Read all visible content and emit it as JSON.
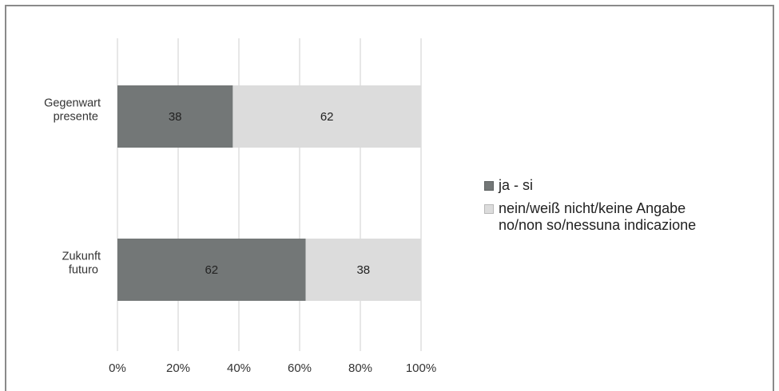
{
  "chart_data": {
    "type": "bar",
    "orientation": "horizontal",
    "stacked": true,
    "percent_stacked": true,
    "categories": [
      "Gegenwart\npresente",
      "Zukunft\nfuturo"
    ],
    "series": [
      {
        "name": "ja - si",
        "values": [
          38,
          62
        ],
        "color": "#737777"
      },
      {
        "name": "nein/weiß nicht/keine Angabe\nno/non so/nessuna indicazione",
        "values": [
          62,
          38
        ],
        "color": "#dcdcdc"
      }
    ],
    "x_ticks": [
      "0%",
      "20%",
      "40%",
      "60%",
      "80%",
      "100%"
    ],
    "xlim": [
      0,
      100
    ],
    "grid": true,
    "legend_position": "right"
  }
}
